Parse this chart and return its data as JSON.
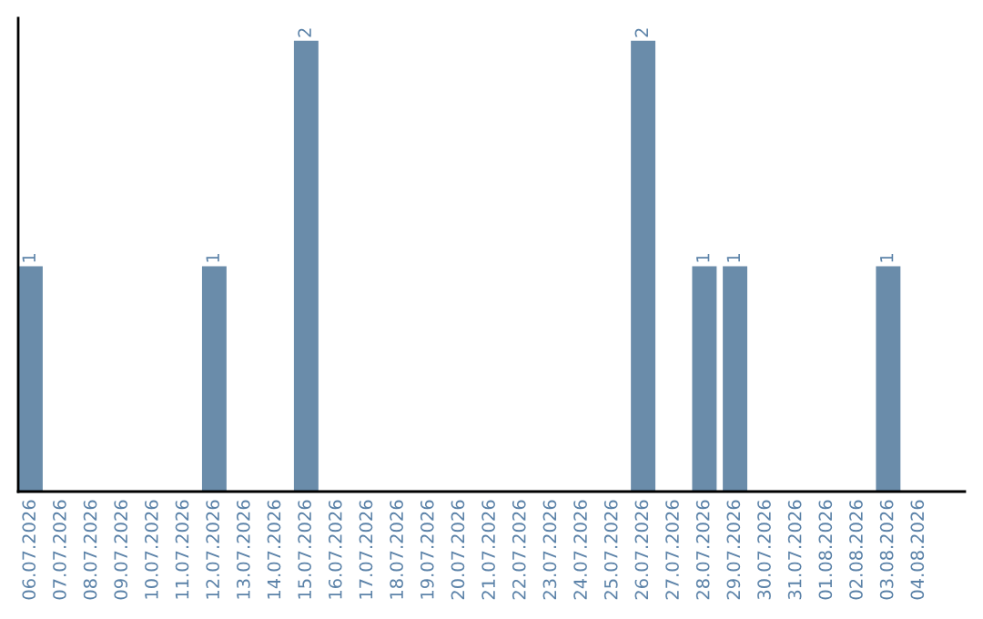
{
  "chart_data": {
    "type": "bar",
    "categories": [
      "06.07.2026",
      "07.07.2026",
      "08.07.2026",
      "09.07.2026",
      "10.07.2026",
      "11.07.2026",
      "12.07.2026",
      "13.07.2026",
      "14.07.2026",
      "15.07.2026",
      "16.07.2026",
      "17.07.2026",
      "18.07.2026",
      "19.07.2026",
      "20.07.2026",
      "21.07.2026",
      "22.07.2026",
      "23.07.2026",
      "24.07.2026",
      "25.07.2026",
      "26.07.2026",
      "27.07.2026",
      "28.07.2026",
      "29.07.2026",
      "30.07.2026",
      "31.07.2026",
      "01.08.2026",
      "02.08.2026",
      "03.08.2026",
      "04.08.2026"
    ],
    "values": [
      1,
      0,
      0,
      0,
      0,
      0,
      1,
      0,
      0,
      2,
      0,
      0,
      0,
      0,
      0,
      0,
      0,
      0,
      0,
      0,
      2,
      0,
      1,
      1,
      0,
      0,
      0,
      0,
      1,
      0
    ],
    "value_labels": [
      "1",
      null,
      null,
      null,
      null,
      null,
      "1",
      null,
      null,
      "2",
      null,
      null,
      null,
      null,
      null,
      null,
      null,
      null,
      null,
      null,
      "2",
      null,
      "1",
      "1",
      null,
      null,
      null,
      null,
      "1",
      null
    ],
    "color": "#6a8caa",
    "tick_labels": "x",
    "grid": false,
    "legend": false
  }
}
